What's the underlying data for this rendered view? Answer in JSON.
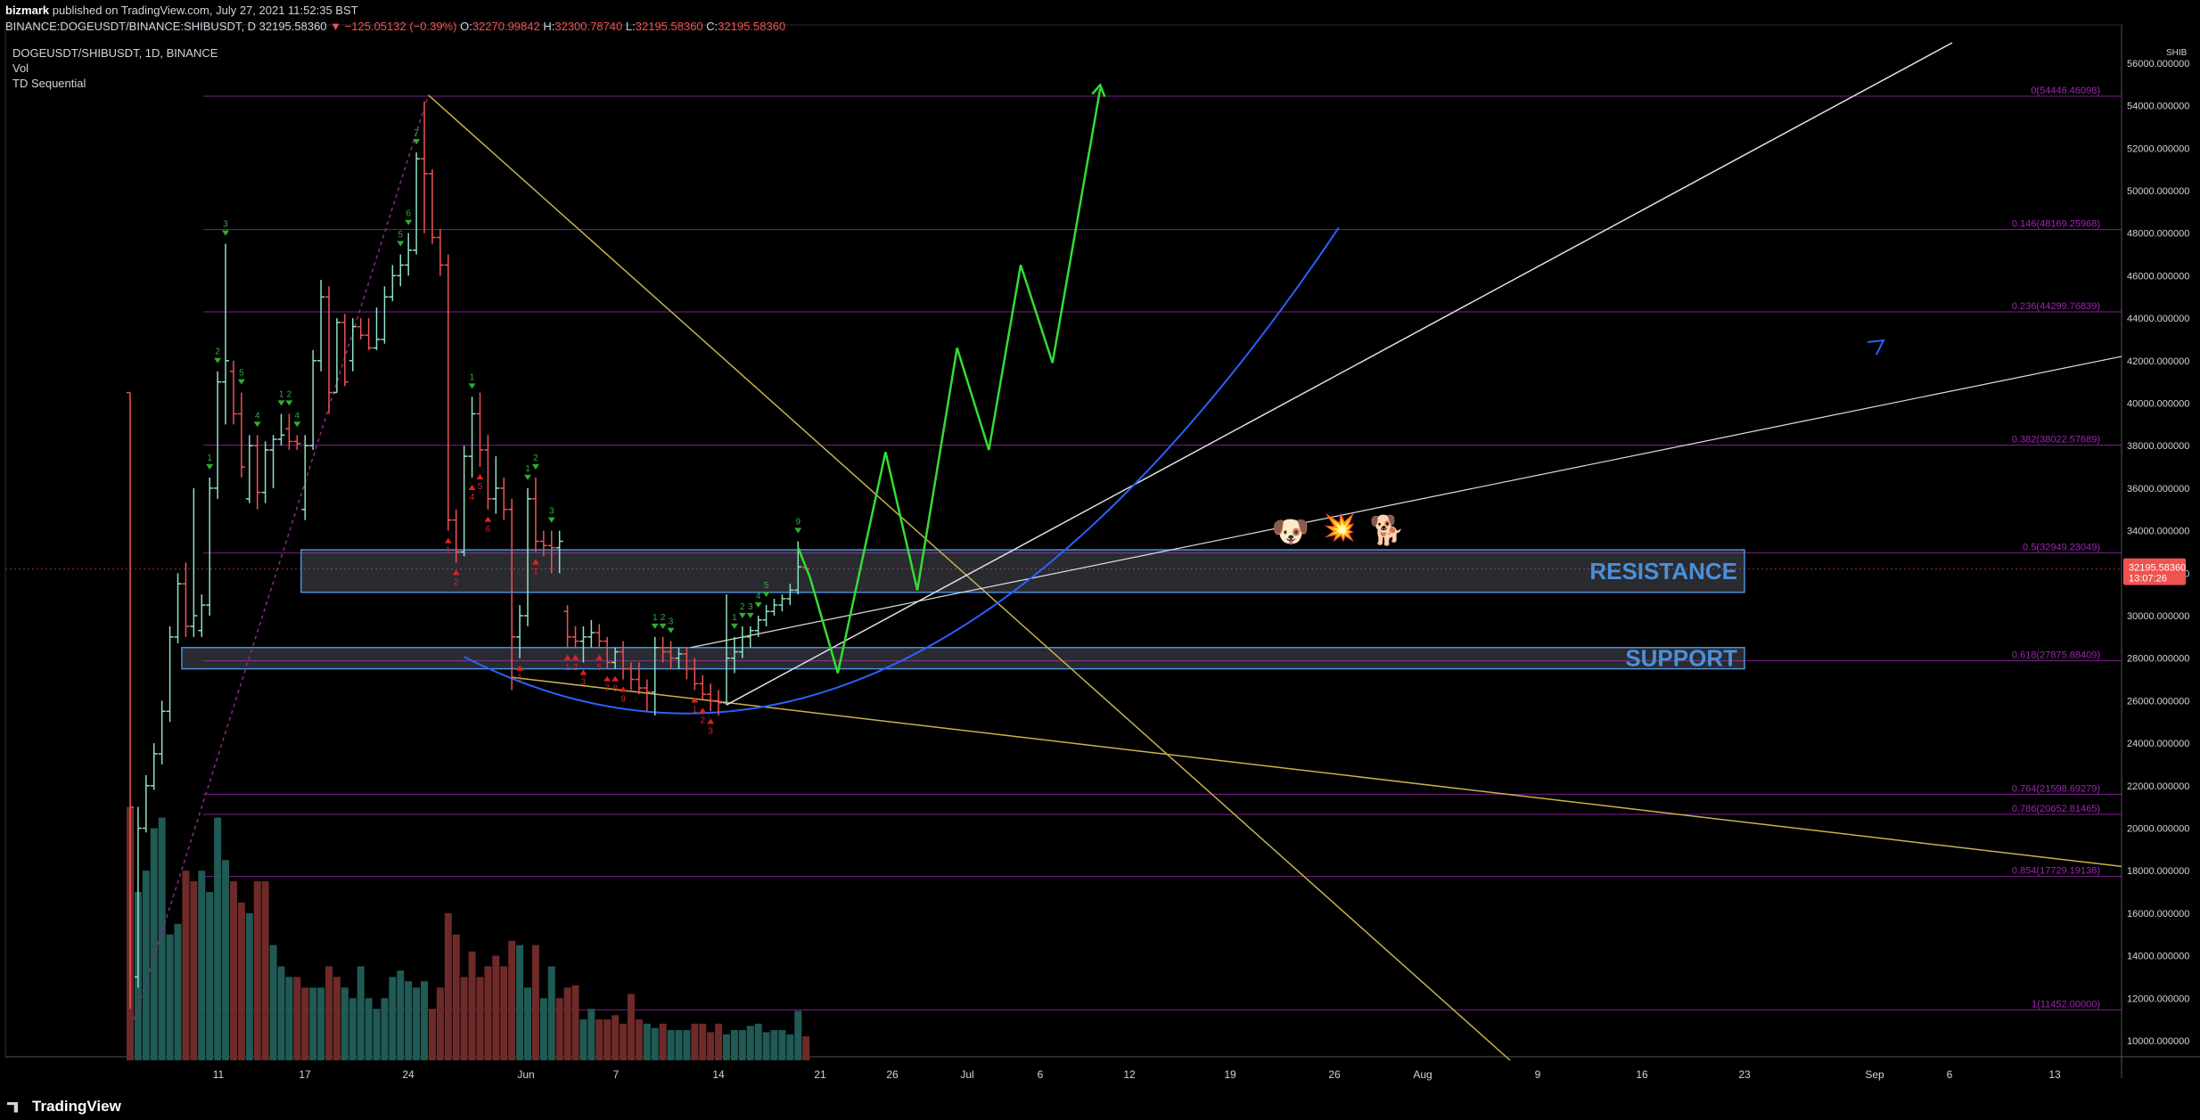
{
  "header": {
    "author": "bizmark",
    "published_text": "published on TradingView.com, July 27, 2021 11:52:35 BST",
    "symbol_line": "BINANCE:DOGEUSDT/BINANCE:SHIBUSDT, D",
    "last": "32195.58360",
    "change": "−125.05132 (−0.39%)",
    "open": "32270.99842",
    "high": "32300.78740",
    "low": "32195.58360",
    "close": "32195.58360",
    "o_label": "O:",
    "h_label": "H:",
    "l_label": "L:",
    "c_label": "C:"
  },
  "legend": {
    "symbol": "DOGEUSDT/SHIBUSDT, 1D, BINANCE",
    "vol": "Vol",
    "indicator": "TD Sequential"
  },
  "footer": {
    "brand": "TradingView"
  },
  "colors": {
    "bull": "#26a69a",
    "bull_body": "#8fe0c0",
    "bear": "#ef5350",
    "fib": "#9c27b0",
    "zone": "#4a90d9",
    "projection": "#33dd33",
    "curve": "#2962ff",
    "trend_yellow": "#c9b24a",
    "trend_white": "#e0e0e0"
  },
  "chart_data": {
    "type": "candlestick",
    "x_axis_labels": [
      "11",
      "17",
      "24",
      "Jun",
      "7",
      "14",
      "21",
      "26",
      "Jul",
      "6",
      "12",
      "19",
      "26",
      "Aug",
      "9",
      "16",
      "23",
      "Sep",
      "6",
      "13"
    ],
    "y_axis_labels": [
      "10000.000000",
      "12000.000000",
      "14000.000000",
      "16000.000000",
      "18000.000000",
      "20000.000000",
      "22000.000000",
      "24000.000000",
      "26000.000000",
      "28000.000000",
      "30000.000000",
      "32000.000000",
      "34000.000000",
      "36000.000000",
      "38000.000000",
      "40000.000000",
      "42000.000000",
      "44000.000000",
      "46000.000000",
      "48000.000000",
      "50000.000000",
      "52000.000000",
      "54000.000000",
      "56000.000000"
    ],
    "ylim": [
      9500,
      56600
    ],
    "currency_label": "SHIB",
    "last_price_tag": {
      "price": "32195.58360",
      "countdown": "13:07:26"
    },
    "candles": [
      [
        0,
        40500,
        40500,
        11500,
        21000
      ],
      [
        1,
        13000,
        21000,
        12500,
        20000
      ],
      [
        2,
        20000,
        22500,
        19800,
        22000
      ],
      [
        3,
        22000,
        24000,
        21800,
        23500
      ],
      [
        4,
        23500,
        26000,
        23000,
        25500
      ],
      [
        5,
        25500,
        29500,
        25000,
        29000
      ],
      [
        6,
        29000,
        32000,
        28700,
        31500
      ],
      [
        7,
        31500,
        32500,
        29000,
        29500
      ],
      [
        8,
        29500,
        36000,
        29000,
        30000
      ],
      [
        9,
        29300,
        31000,
        29000,
        30500
      ],
      [
        10,
        30500,
        36500,
        30000,
        36000
      ],
      [
        11,
        36000,
        41500,
        35500,
        41000
      ],
      [
        12,
        41000,
        47500,
        39000,
        42000
      ],
      [
        13,
        41500,
        42000,
        39000,
        39500
      ],
      [
        14,
        39500,
        40500,
        36500,
        37000
      ],
      [
        15,
        35500,
        38500,
        35300,
        38000
      ],
      [
        16,
        38000,
        38500,
        35000,
        35800
      ],
      [
        17,
        35800,
        38200,
        35300,
        37800
      ],
      [
        18,
        37800,
        38500,
        36000,
        38300
      ],
      [
        19,
        38300,
        39500,
        38000,
        38500
      ],
      [
        20,
        38800,
        39500,
        37800,
        38200
      ],
      [
        21,
        38200,
        38500,
        37800,
        38100
      ],
      [
        22,
        35000,
        38500,
        34500,
        38000
      ],
      [
        23,
        38000,
        42500,
        37800,
        42000
      ],
      [
        24,
        42000,
        45800,
        41500,
        45000
      ],
      [
        25,
        45000,
        45500,
        39500,
        40500
      ],
      [
        26,
        40500,
        44000,
        40500,
        43800
      ],
      [
        27,
        43800,
        44200,
        40800,
        41000
      ],
      [
        28,
        42000,
        44000,
        41500,
        43600
      ],
      [
        29,
        43600,
        44000,
        43000,
        43200
      ],
      [
        30,
        43200,
        44000,
        42500,
        42600
      ],
      [
        31,
        42600,
        44500,
        42500,
        43000
      ],
      [
        32,
        43000,
        45500,
        42800,
        45000
      ],
      [
        33,
        45000,
        46500,
        44800,
        46000
      ],
      [
        34,
        46000,
        47000,
        45500,
        46500
      ],
      [
        35,
        46500,
        48000,
        46000,
        47200
      ],
      [
        36,
        47200,
        51800,
        47000,
        51500
      ],
      [
        37,
        51500,
        54200,
        48000,
        50800
      ],
      [
        38,
        50800,
        51000,
        47500,
        47800
      ],
      [
        39,
        47800,
        48200,
        46000,
        46500
      ],
      [
        40,
        46500,
        47000,
        34000,
        34500
      ],
      [
        41,
        34500,
        35000,
        32500,
        33000
      ],
      [
        42,
        33000,
        38000,
        32800,
        37500
      ],
      [
        43,
        37500,
        40300,
        36500,
        39500
      ],
      [
        44,
        39500,
        40500,
        37000,
        37800
      ],
      [
        45,
        37800,
        38500,
        35000,
        35500
      ],
      [
        46,
        35500,
        37500,
        34800,
        36000
      ],
      [
        47,
        36000,
        36500,
        34500,
        35000
      ],
      [
        48,
        35000,
        35500,
        26500,
        29000
      ],
      [
        49,
        29000,
        30500,
        28000,
        30000
      ],
      [
        50,
        30000,
        36000,
        29500,
        35500
      ],
      [
        51,
        35500,
        36500,
        33000,
        33500
      ],
      [
        52,
        33500,
        34000,
        32800,
        33300
      ],
      [
        53,
        33300,
        34000,
        32000,
        33200
      ],
      [
        54,
        33200,
        34000,
        32000,
        33500
      ],
      [
        55,
        30200,
        30500,
        28500,
        29000
      ],
      [
        56,
        29000,
        29500,
        28500,
        28800
      ],
      [
        57,
        28800,
        29500,
        27800,
        29000
      ],
      [
        58,
        29000,
        29800,
        28500,
        29200
      ],
      [
        59,
        29200,
        29600,
        28500,
        28800
      ],
      [
        60,
        28800,
        29000,
        27500,
        27800
      ],
      [
        61,
        27800,
        28500,
        27500,
        28300
      ],
      [
        62,
        28300,
        28800,
        27000,
        27500
      ],
      [
        63,
        27500,
        27800,
        26500,
        27000
      ],
      [
        64,
        27000,
        27800,
        26300,
        26600
      ],
      [
        65,
        26600,
        27000,
        25500,
        26400
      ],
      [
        66,
        26400,
        29000,
        25300,
        28500
      ],
      [
        67,
        28500,
        29000,
        27800,
        28300
      ],
      [
        68,
        28300,
        28800,
        27500,
        28000
      ],
      [
        69,
        28000,
        28500,
        27500,
        28200
      ],
      [
        70,
        28200,
        28500,
        27000,
        27500
      ],
      [
        71,
        27500,
        28000,
        26500,
        26800
      ],
      [
        72,
        26800,
        27200,
        26000,
        26300
      ],
      [
        73,
        26300,
        26800,
        25500,
        26000
      ],
      [
        74,
        26000,
        26500,
        25300,
        25900
      ],
      [
        75,
        25900,
        31000,
        25800,
        28000
      ],
      [
        76,
        28000,
        29000,
        27300,
        28300
      ],
      [
        77,
        28300,
        29500,
        28000,
        29000
      ],
      [
        78,
        29000,
        29500,
        28500,
        29300
      ],
      [
        79,
        29300,
        30000,
        29000,
        29800
      ],
      [
        80,
        29800,
        30500,
        29500,
        30200
      ],
      [
        81,
        30200,
        30800,
        30000,
        30500
      ],
      [
        82,
        30500,
        31000,
        30200,
        30800
      ],
      [
        83,
        30800,
        31500,
        30500,
        31200
      ],
      [
        84,
        31200,
        33500,
        31000,
        32300
      ],
      [
        85,
        32270,
        32300,
        32195,
        32195
      ]
    ],
    "volume": [
      [
        0,
        21000,
        "bear"
      ],
      [
        1,
        17000,
        "bull"
      ],
      [
        2,
        18000,
        "bull"
      ],
      [
        3,
        20000,
        "bull"
      ],
      [
        4,
        20500,
        "bull"
      ],
      [
        5,
        15000,
        "bull"
      ],
      [
        6,
        15500,
        "bull"
      ],
      [
        7,
        18000,
        "bear"
      ],
      [
        8,
        17500,
        "bear"
      ],
      [
        9,
        18000,
        "bull"
      ],
      [
        10,
        17000,
        "bull"
      ],
      [
        11,
        20500,
        "bull"
      ],
      [
        12,
        18500,
        "bull"
      ],
      [
        13,
        17500,
        "bear"
      ],
      [
        14,
        16500,
        "bear"
      ],
      [
        15,
        16000,
        "bull"
      ],
      [
        16,
        17500,
        "bear"
      ],
      [
        17,
        17500,
        "bear"
      ],
      [
        18,
        14500,
        "bull"
      ],
      [
        19,
        13500,
        "bull"
      ],
      [
        20,
        13000,
        "bull"
      ],
      [
        21,
        13000,
        "bear"
      ],
      [
        22,
        12500,
        "bear"
      ],
      [
        23,
        12500,
        "bull"
      ],
      [
        24,
        12500,
        "bull"
      ],
      [
        25,
        13500,
        "bear"
      ],
      [
        26,
        13000,
        "bear"
      ],
      [
        27,
        12500,
        "bull"
      ],
      [
        28,
        12000,
        "bull"
      ],
      [
        29,
        13500,
        "bull"
      ],
      [
        30,
        12000,
        "bull"
      ],
      [
        31,
        11500,
        "bull"
      ],
      [
        32,
        12000,
        "bull"
      ],
      [
        33,
        13000,
        "bull"
      ],
      [
        34,
        13300,
        "bull"
      ],
      [
        35,
        12800,
        "bull"
      ],
      [
        36,
        12500,
        "bull"
      ],
      [
        37,
        12800,
        "bull"
      ],
      [
        38,
        11500,
        "bear"
      ],
      [
        39,
        12500,
        "bear"
      ],
      [
        40,
        16000,
        "bear"
      ],
      [
        41,
        15000,
        "bear"
      ],
      [
        42,
        13000,
        "bear"
      ],
      [
        43,
        14200,
        "bear"
      ],
      [
        44,
        13000,
        "bear"
      ],
      [
        45,
        13500,
        "bear"
      ],
      [
        46,
        14000,
        "bear"
      ],
      [
        47,
        13500,
        "bear"
      ],
      [
        48,
        14700,
        "bear"
      ],
      [
        49,
        14500,
        "bull"
      ],
      [
        50,
        12500,
        "bull"
      ],
      [
        51,
        14500,
        "bear"
      ],
      [
        52,
        12000,
        "bull"
      ],
      [
        53,
        13500,
        "bull"
      ],
      [
        54,
        12000,
        "bear"
      ],
      [
        55,
        12500,
        "bear"
      ],
      [
        56,
        12600,
        "bear"
      ],
      [
        57,
        11000,
        "bull"
      ],
      [
        58,
        11500,
        "bull"
      ],
      [
        59,
        11000,
        "bear"
      ],
      [
        60,
        11000,
        "bear"
      ],
      [
        61,
        11200,
        "bear"
      ],
      [
        62,
        10800,
        "bear"
      ],
      [
        63,
        12200,
        "bear"
      ],
      [
        64,
        11000,
        "bear"
      ],
      [
        65,
        10800,
        "bull"
      ],
      [
        66,
        10600,
        "bull"
      ],
      [
        67,
        10800,
        "bear"
      ],
      [
        68,
        10500,
        "bull"
      ],
      [
        69,
        10500,
        "bull"
      ],
      [
        70,
        10500,
        "bull"
      ],
      [
        71,
        10800,
        "bear"
      ],
      [
        72,
        10800,
        "bear"
      ],
      [
        73,
        10400,
        "bear"
      ],
      [
        74,
        10800,
        "bear"
      ],
      [
        75,
        10300,
        "bull"
      ],
      [
        76,
        10500,
        "bull"
      ],
      [
        77,
        10500,
        "bull"
      ],
      [
        78,
        10700,
        "bull"
      ],
      [
        79,
        10800,
        "bull"
      ],
      [
        80,
        10400,
        "bull"
      ],
      [
        81,
        10500,
        "bull"
      ],
      [
        82,
        10500,
        "bull"
      ],
      [
        83,
        10300,
        "bull"
      ],
      [
        84,
        11400,
        "bull"
      ],
      [
        85,
        10200,
        "bear"
      ]
    ],
    "fib_levels": [
      {
        "label": "0(54446.46098)",
        "value": 54446
      },
      {
        "label": "0.146(48169.25968)",
        "value": 48169
      },
      {
        "label": "0.236(44299.76839)",
        "value": 44299
      },
      {
        "label": "0.382(38022.57689)",
        "value": 38022
      },
      {
        "label": "0.5(32949.23049)",
        "value": 32949
      },
      {
        "label": "0.618(27875.88409)",
        "value": 27875
      },
      {
        "label": "0.764(21598.69279)",
        "value": 21598
      },
      {
        "label": "0.786(20652.81465)",
        "value": 20652
      },
      {
        "label": "0.854(17729.19138)",
        "value": 17729
      },
      {
        "label": "1(11452.00000)",
        "value": 11452
      }
    ],
    "zones": [
      {
        "label": "RESISTANCE",
        "from": 31100,
        "to": 33100,
        "start_bar": 21.5
      },
      {
        "label": "SUPPORT",
        "from": 27500,
        "to": 28500,
        "start_bar": 6.5
      }
    ],
    "projection_path": [
      [
        84,
        33200
      ],
      [
        85.5,
        31800
      ],
      [
        89,
        27300
      ],
      [
        95,
        37700
      ],
      [
        99,
        31200
      ],
      [
        104,
        42600
      ],
      [
        108,
        37800
      ],
      [
        112,
        46500
      ],
      [
        116,
        41900
      ],
      [
        122,
        54800
      ]
    ],
    "td_buy_labels": [
      [
        40,
        "1"
      ],
      [
        41,
        "2"
      ],
      [
        43,
        "4"
      ],
      [
        44,
        "5"
      ],
      [
        45,
        "6"
      ],
      [
        49,
        "1"
      ],
      [
        51,
        "1"
      ],
      [
        55,
        "1"
      ],
      [
        56,
        "2"
      ],
      [
        57,
        "3"
      ],
      [
        59,
        "5"
      ],
      [
        60,
        "7"
      ],
      [
        61,
        "8"
      ],
      [
        62,
        "9"
      ],
      [
        71,
        "1"
      ],
      [
        72,
        "2"
      ],
      [
        73,
        "3"
      ]
    ],
    "td_sell_labels": [
      [
        10,
        "1"
      ],
      [
        11,
        "2"
      ],
      [
        12,
        "3"
      ],
      [
        14,
        "5"
      ],
      [
        16,
        "4"
      ],
      [
        19,
        "1"
      ],
      [
        20,
        "2"
      ],
      [
        21,
        "4"
      ],
      [
        34,
        "5"
      ],
      [
        35,
        "6"
      ],
      [
        36,
        "7"
      ],
      [
        43,
        "1"
      ],
      [
        50,
        "1"
      ],
      [
        51,
        "2"
      ],
      [
        53,
        "3"
      ],
      [
        66,
        "1"
      ],
      [
        67,
        "2"
      ],
      [
        68,
        "3"
      ],
      [
        76,
        "1"
      ],
      [
        77,
        "2"
      ],
      [
        78,
        "3"
      ],
      [
        79,
        "4"
      ],
      [
        80,
        "5"
      ],
      [
        84,
        "9"
      ]
    ]
  }
}
